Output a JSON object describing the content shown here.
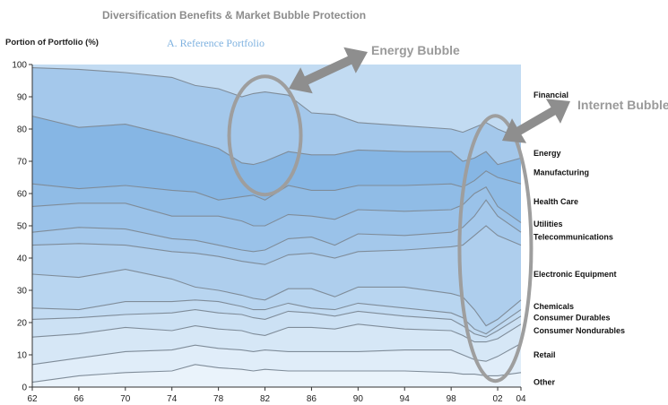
{
  "header": {
    "title": "Diversification Benefits & Market Bubble Protection",
    "panel_title": "A. Reference Portfolio"
  },
  "annotations": {
    "energy_bubble": "Energy Bubble",
    "internet_bubble": "Internet Bubble"
  },
  "colors": {
    "band_light": "#eaf3fb",
    "band_dark": "#86b6e4",
    "line": "#7f8c99",
    "ellipse": "#9e9e9e",
    "arrow": "#8e8e8e",
    "title": "#8c8c8c",
    "subtitle": "#7fb2e0"
  },
  "chart_data": {
    "type": "area",
    "stacked": true,
    "title": "Diversification Benefits & Market Bubble Protection",
    "subtitle": "A. Reference Portfolio",
    "ylabel": "Portion of Portfolio (%)",
    "xlabel": "",
    "ylim": [
      0,
      100
    ],
    "xlim": [
      1962,
      2004
    ],
    "x_ticks": [
      "62",
      "66",
      "70",
      "74",
      "78",
      "82",
      "86",
      "90",
      "94",
      "98",
      "02",
      "04"
    ],
    "y_ticks": [
      0,
      10,
      20,
      30,
      40,
      50,
      60,
      70,
      80,
      90,
      100
    ],
    "x": [
      1962,
      1966,
      1970,
      1974,
      1976,
      1978,
      1980,
      1981,
      1982,
      1984,
      1986,
      1988,
      1990,
      1994,
      1998,
      1999,
      2000,
      2001,
      2002,
      2004
    ],
    "boundaries": [
      {
        "name": "Other",
        "values": [
          1.5,
          3.5,
          4.5,
          5.0,
          7.0,
          6.0,
          5.5,
          5.0,
          5.5,
          5.0,
          5.0,
          5.0,
          5.0,
          5.0,
          4.5,
          4.0,
          4.0,
          3.5,
          3.5,
          4.5
        ]
      },
      {
        "name": "Retail",
        "values": [
          7.0,
          9.0,
          11.0,
          11.5,
          13.0,
          12.0,
          11.5,
          11.0,
          11.5,
          11.0,
          11.0,
          11.0,
          11.0,
          11.5,
          11.5,
          10.0,
          8.5,
          8.0,
          9.5,
          13.5
        ]
      },
      {
        "name": "Consumer Nondurables",
        "values": [
          15.5,
          16.5,
          18.5,
          17.5,
          19.0,
          18.0,
          17.5,
          16.5,
          16.0,
          18.5,
          18.5,
          18.0,
          19.5,
          18.0,
          17.5,
          16.0,
          14.0,
          14.0,
          15.0,
          19.5
        ]
      },
      {
        "name": "Consumer Durables",
        "values": [
          21.0,
          21.5,
          22.5,
          23.0,
          24.0,
          23.0,
          22.5,
          21.5,
          21.0,
          23.5,
          23.0,
          22.0,
          23.5,
          22.0,
          21.0,
          19.0,
          16.5,
          15.5,
          17.5,
          22.0
        ]
      },
      {
        "name": "Chemicals",
        "values": [
          24.5,
          24.0,
          26.5,
          26.5,
          27.0,
          26.5,
          25.0,
          24.0,
          24.0,
          26.0,
          24.5,
          24.0,
          26.0,
          24.5,
          23.0,
          21.5,
          18.0,
          16.5,
          19.0,
          24.0
        ]
      },
      {
        "name": "Electronic Equipment",
        "values": [
          35.0,
          34.0,
          36.5,
          33.5,
          31.0,
          30.0,
          28.5,
          27.5,
          27.0,
          30.5,
          30.5,
          28.0,
          31.0,
          31.0,
          29.0,
          28.0,
          24.0,
          19.0,
          21.0,
          27.0
        ]
      },
      {
        "name": "Telecommunications",
        "values": [
          44.0,
          44.5,
          44.0,
          42.0,
          41.5,
          40.5,
          39.0,
          38.5,
          38.0,
          41.0,
          41.5,
          40.0,
          42.0,
          42.5,
          43.5,
          44.0,
          47.0,
          50.0,
          47.0,
          44.0
        ]
      },
      {
        "name": "Utilities",
        "values": [
          48.0,
          49.5,
          49.0,
          46.0,
          45.5,
          44.0,
          42.5,
          42.0,
          42.5,
          46.0,
          46.5,
          44.0,
          47.5,
          47.0,
          48.0,
          49.5,
          53.0,
          58.0,
          53.0,
          48.0
        ]
      },
      {
        "name": "Health Care",
        "values": [
          56.0,
          57.0,
          57.0,
          53.0,
          53.0,
          53.0,
          51.5,
          50.0,
          50.0,
          53.5,
          53.0,
          52.0,
          55.0,
          54.5,
          55.0,
          56.5,
          60.0,
          62.0,
          56.0,
          51.0
        ]
      },
      {
        "name": "Manufacturing",
        "values": [
          63.0,
          61.5,
          62.5,
          61.0,
          60.5,
          58.0,
          59.0,
          59.5,
          58.0,
          62.5,
          61.0,
          61.0,
          62.5,
          62.5,
          63.0,
          62.0,
          64.0,
          67.0,
          65.0,
          63.0
        ]
      },
      {
        "name": "Energy",
        "values": [
          84.0,
          80.5,
          81.5,
          78.0,
          76.0,
          74.0,
          69.5,
          69.0,
          70.0,
          73.0,
          72.0,
          72.0,
          73.5,
          73.0,
          73.0,
          70.0,
          71.0,
          73.0,
          69.0,
          71.0
        ]
      },
      {
        "name": "Financial",
        "values": [
          99.0,
          98.5,
          97.5,
          96.0,
          93.5,
          92.5,
          90.0,
          91.0,
          91.5,
          90.5,
          85.0,
          84.5,
          82.0,
          81.0,
          80.0,
          79.0,
          80.5,
          82.0,
          80.0,
          77.0
        ]
      }
    ],
    "series_labels": [
      {
        "name": "Financial",
        "y": 90.5
      },
      {
        "name": "Energy",
        "y": 72.5
      },
      {
        "name": "Manufacturing",
        "y": 66.5
      },
      {
        "name": "Health Care",
        "y": 57.5
      },
      {
        "name": "Utilities",
        "y": 50.5
      },
      {
        "name": "Telecommunications",
        "y": 46.5
      },
      {
        "name": "Electronic Equipment",
        "y": 35.0
      },
      {
        "name": "Chemicals",
        "y": 25.0
      },
      {
        "name": "Consumer Durables",
        "y": 21.5
      },
      {
        "name": "Consumer Nondurables",
        "y": 17.5
      },
      {
        "name": "Retail",
        "y": 10.0
      },
      {
        "name": "Other",
        "y": 1.5
      }
    ],
    "annotations": [
      "Energy Bubble",
      "Internet Bubble"
    ],
    "grid": false,
    "legend": "right"
  }
}
